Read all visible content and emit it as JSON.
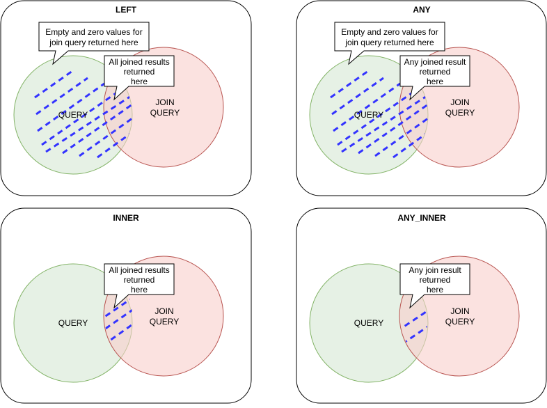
{
  "colors": {
    "panel_border": "#000000",
    "query_fill": "#d5e8d4",
    "query_stroke": "#82b366",
    "join_fill": "#f8cecc",
    "join_stroke": "#b85450",
    "hatch": "#3333ff",
    "callout_fill": "#ffffff",
    "callout_stroke": "#000000"
  },
  "panels": [
    {
      "title": "LEFT",
      "query_label": "QUERY",
      "join_label_line1": "JOIN",
      "join_label_line2": "QUERY",
      "hatch_region": "left-circle",
      "callouts": [
        {
          "line1": "Empty and zero values for",
          "line2": "join query returned here"
        },
        {
          "line1": "All joined results",
          "line2": "returned",
          "line3": "here"
        }
      ]
    },
    {
      "title": "ANY",
      "query_label": "QUERY",
      "join_label_line1": "JOIN",
      "join_label_line2": "QUERY",
      "hatch_region": "left-circle",
      "callouts": [
        {
          "line1": "Empty and zero values for",
          "line2": "join query returned here"
        },
        {
          "line1": "Any joined result",
          "line2": "returned",
          "line3": "here"
        }
      ]
    },
    {
      "title": "INNER",
      "query_label": "QUERY",
      "join_label_line1": "JOIN",
      "join_label_line2": "QUERY",
      "hatch_region": "intersection",
      "callouts": [
        {
          "line1": "All joined results",
          "line2": "returned",
          "line3": "here"
        }
      ]
    },
    {
      "title": "ANY_INNER",
      "query_label": "QUERY",
      "join_label_line1": "JOIN",
      "join_label_line2": "QUERY",
      "hatch_region": "intersection",
      "callouts": [
        {
          "line1": "Any join result",
          "line2": "returned",
          "line3": "here"
        }
      ]
    }
  ]
}
